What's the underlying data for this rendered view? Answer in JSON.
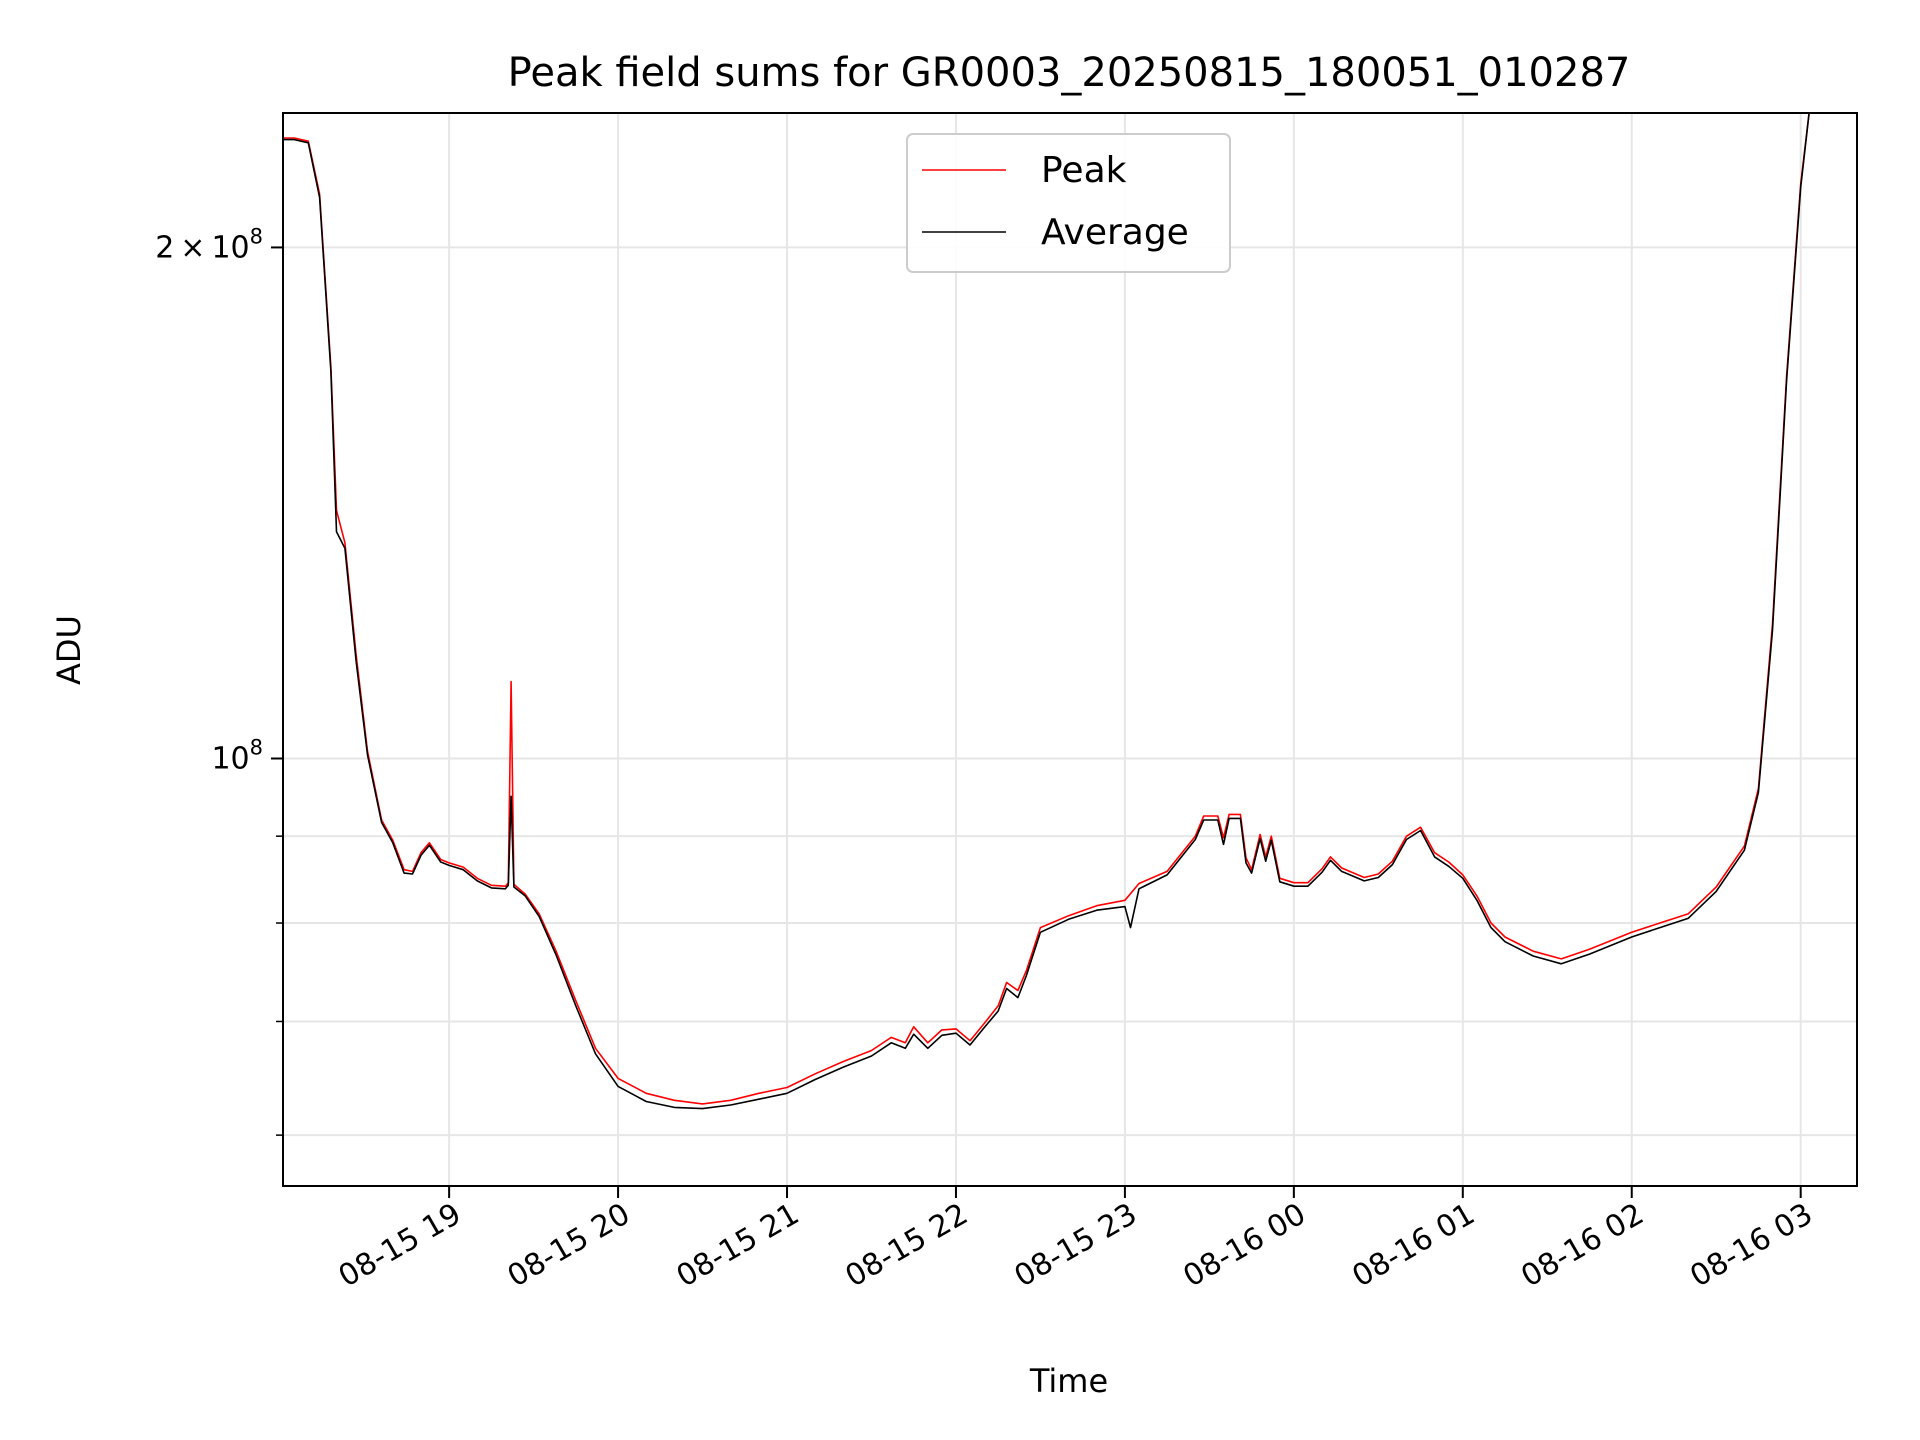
{
  "chart_data": {
    "type": "line",
    "title": "Peak field sums for GR0003_20250815_180051_010287",
    "xlabel": "Time",
    "ylabel": "ADU",
    "yscale": "log",
    "xlim": [
      "2025-08-15 18:01",
      "2025-08-16 03:20"
    ],
    "ylim": [
      56000000,
      240000000
    ],
    "grid": true,
    "legend_position": "top-center",
    "x_ticks": [
      {
        "t": "2025-08-15 19:00",
        "label": "08-15 19"
      },
      {
        "t": "2025-08-15 20:00",
        "label": "08-15 20"
      },
      {
        "t": "2025-08-15 21:00",
        "label": "08-15 21"
      },
      {
        "t": "2025-08-15 22:00",
        "label": "08-15 22"
      },
      {
        "t": "2025-08-15 23:00",
        "label": "08-15 23"
      },
      {
        "t": "2025-08-16 00:00",
        "label": "08-16 00"
      },
      {
        "t": "2025-08-16 01:00",
        "label": "08-16 01"
      },
      {
        "t": "2025-08-16 02:00",
        "label": "08-16 02"
      },
      {
        "t": "2025-08-16 03:00",
        "label": "08-16 03"
      }
    ],
    "y_major_ticks": [
      {
        "v": 100000000,
        "base": "10",
        "exp": "8",
        "coef": ""
      },
      {
        "v": 200000000,
        "base": "10",
        "exp": "8",
        "coef": "2"
      }
    ],
    "y_minor_ticks": [
      60000000,
      70000000,
      80000000,
      90000000
    ],
    "series": [
      {
        "name": "Peak",
        "color": "#ff0000",
        "points": [
          [
            "2025-08-15 18:01",
            232000000
          ],
          [
            "2025-08-15 18:05",
            232000000
          ],
          [
            "2025-08-15 18:10",
            231000000
          ],
          [
            "2025-08-15 18:14",
            215000000
          ],
          [
            "2025-08-15 18:18",
            170000000
          ],
          [
            "2025-08-15 18:20",
            140000000
          ],
          [
            "2025-08-15 18:23",
            134000000
          ],
          [
            "2025-08-15 18:27",
            115000000
          ],
          [
            "2025-08-15 18:31",
            101000000
          ],
          [
            "2025-08-15 18:36",
            92000000
          ],
          [
            "2025-08-15 18:40",
            89500000
          ],
          [
            "2025-08-15 18:44",
            86000000
          ],
          [
            "2025-08-15 18:47",
            85800000
          ],
          [
            "2025-08-15 18:50",
            88000000
          ],
          [
            "2025-08-15 18:53",
            89200000
          ],
          [
            "2025-08-15 18:57",
            87200000
          ],
          [
            "2025-08-15 19:00",
            86800000
          ],
          [
            "2025-08-15 19:05",
            86300000
          ],
          [
            "2025-08-15 19:10",
            85000000
          ],
          [
            "2025-08-15 19:15",
            84200000
          ],
          [
            "2025-08-15 19:20",
            84100000
          ],
          [
            "2025-08-15 19:21",
            84500000
          ],
          [
            "2025-08-15 19:22",
            111000000
          ],
          [
            "2025-08-15 19:23",
            84300000
          ],
          [
            "2025-08-15 19:27",
            83200000
          ],
          [
            "2025-08-15 19:32",
            81000000
          ],
          [
            "2025-08-15 19:38",
            77000000
          ],
          [
            "2025-08-15 19:45",
            72000000
          ],
          [
            "2025-08-15 19:52",
            67500000
          ],
          [
            "2025-08-15 20:00",
            64800000
          ],
          [
            "2025-08-15 20:10",
            63500000
          ],
          [
            "2025-08-15 20:20",
            62900000
          ],
          [
            "2025-08-15 20:30",
            62600000
          ],
          [
            "2025-08-15 20:40",
            62900000
          ],
          [
            "2025-08-15 20:50",
            63500000
          ],
          [
            "2025-08-15 21:00",
            64000000
          ],
          [
            "2025-08-15 21:10",
            65200000
          ],
          [
            "2025-08-15 21:20",
            66300000
          ],
          [
            "2025-08-15 21:30",
            67300000
          ],
          [
            "2025-08-15 21:37",
            68500000
          ],
          [
            "2025-08-15 21:42",
            68000000
          ],
          [
            "2025-08-15 21:45",
            69500000
          ],
          [
            "2025-08-15 21:50",
            68000000
          ],
          [
            "2025-08-15 21:55",
            69200000
          ],
          [
            "2025-08-15 22:00",
            69300000
          ],
          [
            "2025-08-15 22:05",
            68200000
          ],
          [
            "2025-08-15 22:10",
            69800000
          ],
          [
            "2025-08-15 22:15",
            71500000
          ],
          [
            "2025-08-15 22:18",
            73800000
          ],
          [
            "2025-08-15 22:22",
            73000000
          ],
          [
            "2025-08-15 22:25",
            75000000
          ],
          [
            "2025-08-15 22:30",
            79500000
          ],
          [
            "2025-08-15 22:40",
            80800000
          ],
          [
            "2025-08-15 22:50",
            81900000
          ],
          [
            "2025-08-15 23:00",
            82500000
          ],
          [
            "2025-08-15 23:05",
            84400000
          ],
          [
            "2025-08-15 23:15",
            85800000
          ],
          [
            "2025-08-15 23:25",
            90000000
          ],
          [
            "2025-08-15 23:28",
            92500000
          ],
          [
            "2025-08-15 23:33",
            92500000
          ],
          [
            "2025-08-15 23:35",
            89800000
          ],
          [
            "2025-08-15 23:37",
            92700000
          ],
          [
            "2025-08-15 23:41",
            92700000
          ],
          [
            "2025-08-15 23:43",
            87400000
          ],
          [
            "2025-08-15 23:45",
            86000000
          ],
          [
            "2025-08-15 23:48",
            90200000
          ],
          [
            "2025-08-15 23:50",
            87500000
          ],
          [
            "2025-08-15 23:52",
            90000000
          ],
          [
            "2025-08-15 23:55",
            85000000
          ],
          [
            "2025-08-16 00:00",
            84500000
          ],
          [
            "2025-08-16 00:05",
            84500000
          ],
          [
            "2025-08-16 00:10",
            86100000
          ],
          [
            "2025-08-16 00:13",
            87500000
          ],
          [
            "2025-08-16 00:17",
            86200000
          ],
          [
            "2025-08-16 00:25",
            85100000
          ],
          [
            "2025-08-16 00:30",
            85500000
          ],
          [
            "2025-08-16 00:35",
            87000000
          ],
          [
            "2025-08-16 00:40",
            90000000
          ],
          [
            "2025-08-16 00:45",
            91100000
          ],
          [
            "2025-08-16 00:50",
            88000000
          ],
          [
            "2025-08-16 00:55",
            86900000
          ],
          [
            "2025-08-16 01:00",
            85400000
          ],
          [
            "2025-08-16 01:05",
            83000000
          ],
          [
            "2025-08-16 01:10",
            80000000
          ],
          [
            "2025-08-16 01:15",
            78500000
          ],
          [
            "2025-08-16 01:25",
            77000000
          ],
          [
            "2025-08-16 01:35",
            76200000
          ],
          [
            "2025-08-16 01:45",
            77200000
          ],
          [
            "2025-08-16 02:00",
            79000000
          ],
          [
            "2025-08-16 02:10",
            80000000
          ],
          [
            "2025-08-16 02:20",
            81000000
          ],
          [
            "2025-08-16 02:30",
            84000000
          ],
          [
            "2025-08-16 02:40",
            88800000
          ],
          [
            "2025-08-16 02:45",
            96000000
          ],
          [
            "2025-08-16 02:50",
            120000000
          ],
          [
            "2025-08-16 02:55",
            168000000
          ],
          [
            "2025-08-16 03:00",
            218000000
          ],
          [
            "2025-08-16 03:03",
            240000000
          ]
        ]
      },
      {
        "name": "Average",
        "color": "#000000",
        "points": [
          [
            "2025-08-15 18:01",
            231500000
          ],
          [
            "2025-08-15 18:05",
            231500000
          ],
          [
            "2025-08-15 18:10",
            230500000
          ],
          [
            "2025-08-15 18:14",
            214000000
          ],
          [
            "2025-08-15 18:18",
            169000000
          ],
          [
            "2025-08-15 18:20",
            136000000
          ],
          [
            "2025-08-15 18:23",
            133000000
          ],
          [
            "2025-08-15 18:27",
            114000000
          ],
          [
            "2025-08-15 18:31",
            100500000
          ],
          [
            "2025-08-15 18:36",
            91700000
          ],
          [
            "2025-08-15 18:40",
            89200000
          ],
          [
            "2025-08-15 18:44",
            85600000
          ],
          [
            "2025-08-15 18:47",
            85500000
          ],
          [
            "2025-08-15 18:50",
            87700000
          ],
          [
            "2025-08-15 18:53",
            88900000
          ],
          [
            "2025-08-15 18:57",
            86900000
          ],
          [
            "2025-08-15 19:00",
            86500000
          ],
          [
            "2025-08-15 19:05",
            86000000
          ],
          [
            "2025-08-15 19:10",
            84700000
          ],
          [
            "2025-08-15 19:15",
            83900000
          ],
          [
            "2025-08-15 19:20",
            83800000
          ],
          [
            "2025-08-15 19:21",
            84200000
          ],
          [
            "2025-08-15 19:22",
            95000000
          ],
          [
            "2025-08-15 19:23",
            84000000
          ],
          [
            "2025-08-15 19:27",
            83000000
          ],
          [
            "2025-08-15 19:32",
            80700000
          ],
          [
            "2025-08-15 19:38",
            76600000
          ],
          [
            "2025-08-15 19:45",
            71500000
          ],
          [
            "2025-08-15 19:52",
            67000000
          ],
          [
            "2025-08-15 20:00",
            64100000
          ],
          [
            "2025-08-15 20:10",
            62800000
          ],
          [
            "2025-08-15 20:20",
            62300000
          ],
          [
            "2025-08-15 20:30",
            62200000
          ],
          [
            "2025-08-15 20:40",
            62500000
          ],
          [
            "2025-08-15 20:50",
            63000000
          ],
          [
            "2025-08-15 21:00",
            63500000
          ],
          [
            "2025-08-15 21:10",
            64700000
          ],
          [
            "2025-08-15 21:20",
            65800000
          ],
          [
            "2025-08-15 21:30",
            66800000
          ],
          [
            "2025-08-15 21:37",
            68000000
          ],
          [
            "2025-08-15 21:42",
            67500000
          ],
          [
            "2025-08-15 21:45",
            68800000
          ],
          [
            "2025-08-15 21:50",
            67500000
          ],
          [
            "2025-08-15 21:55",
            68700000
          ],
          [
            "2025-08-15 22:00",
            68900000
          ],
          [
            "2025-08-15 22:05",
            67800000
          ],
          [
            "2025-08-15 22:10",
            69400000
          ],
          [
            "2025-08-15 22:15",
            71000000
          ],
          [
            "2025-08-15 22:18",
            73200000
          ],
          [
            "2025-08-15 22:22",
            72300000
          ],
          [
            "2025-08-15 22:25",
            74500000
          ],
          [
            "2025-08-15 22:30",
            79000000
          ],
          [
            "2025-08-15 22:40",
            80400000
          ],
          [
            "2025-08-15 22:50",
            81400000
          ],
          [
            "2025-08-15 23:00",
            81800000
          ],
          [
            "2025-08-15 23:02",
            79500000
          ],
          [
            "2025-08-15 23:05",
            83800000
          ],
          [
            "2025-08-15 23:15",
            85400000
          ],
          [
            "2025-08-15 23:25",
            89600000
          ],
          [
            "2025-08-15 23:28",
            92000000
          ],
          [
            "2025-08-15 23:33",
            92000000
          ],
          [
            "2025-08-15 23:35",
            89000000
          ],
          [
            "2025-08-15 23:37",
            92200000
          ],
          [
            "2025-08-15 23:41",
            92200000
          ],
          [
            "2025-08-15 23:43",
            86800000
          ],
          [
            "2025-08-15 23:45",
            85600000
          ],
          [
            "2025-08-15 23:48",
            89700000
          ],
          [
            "2025-08-15 23:50",
            87000000
          ],
          [
            "2025-08-15 23:52",
            89500000
          ],
          [
            "2025-08-15 23:55",
            84600000
          ],
          [
            "2025-08-16 00:00",
            84100000
          ],
          [
            "2025-08-16 00:05",
            84100000
          ],
          [
            "2025-08-16 00:10",
            85700000
          ],
          [
            "2025-08-16 00:13",
            87100000
          ],
          [
            "2025-08-16 00:17",
            85800000
          ],
          [
            "2025-08-16 00:25",
            84700000
          ],
          [
            "2025-08-16 00:30",
            85100000
          ],
          [
            "2025-08-16 00:35",
            86600000
          ],
          [
            "2025-08-16 00:40",
            89600000
          ],
          [
            "2025-08-16 00:45",
            90700000
          ],
          [
            "2025-08-16 00:50",
            87500000
          ],
          [
            "2025-08-16 00:55",
            86400000
          ],
          [
            "2025-08-16 01:00",
            85000000
          ],
          [
            "2025-08-16 01:05",
            82500000
          ],
          [
            "2025-08-16 01:10",
            79500000
          ],
          [
            "2025-08-16 01:15",
            78000000
          ],
          [
            "2025-08-16 01:25",
            76500000
          ],
          [
            "2025-08-16 01:35",
            75700000
          ],
          [
            "2025-08-16 01:45",
            76700000
          ],
          [
            "2025-08-16 02:00",
            78500000
          ],
          [
            "2025-08-16 02:10",
            79500000
          ],
          [
            "2025-08-16 02:20",
            80500000
          ],
          [
            "2025-08-16 02:30",
            83500000
          ],
          [
            "2025-08-16 02:40",
            88300000
          ],
          [
            "2025-08-16 02:45",
            95500000
          ],
          [
            "2025-08-16 02:50",
            119000000
          ],
          [
            "2025-08-16 02:55",
            167000000
          ],
          [
            "2025-08-16 03:00",
            217000000
          ],
          [
            "2025-08-16 03:03",
            240000000
          ]
        ]
      }
    ]
  }
}
